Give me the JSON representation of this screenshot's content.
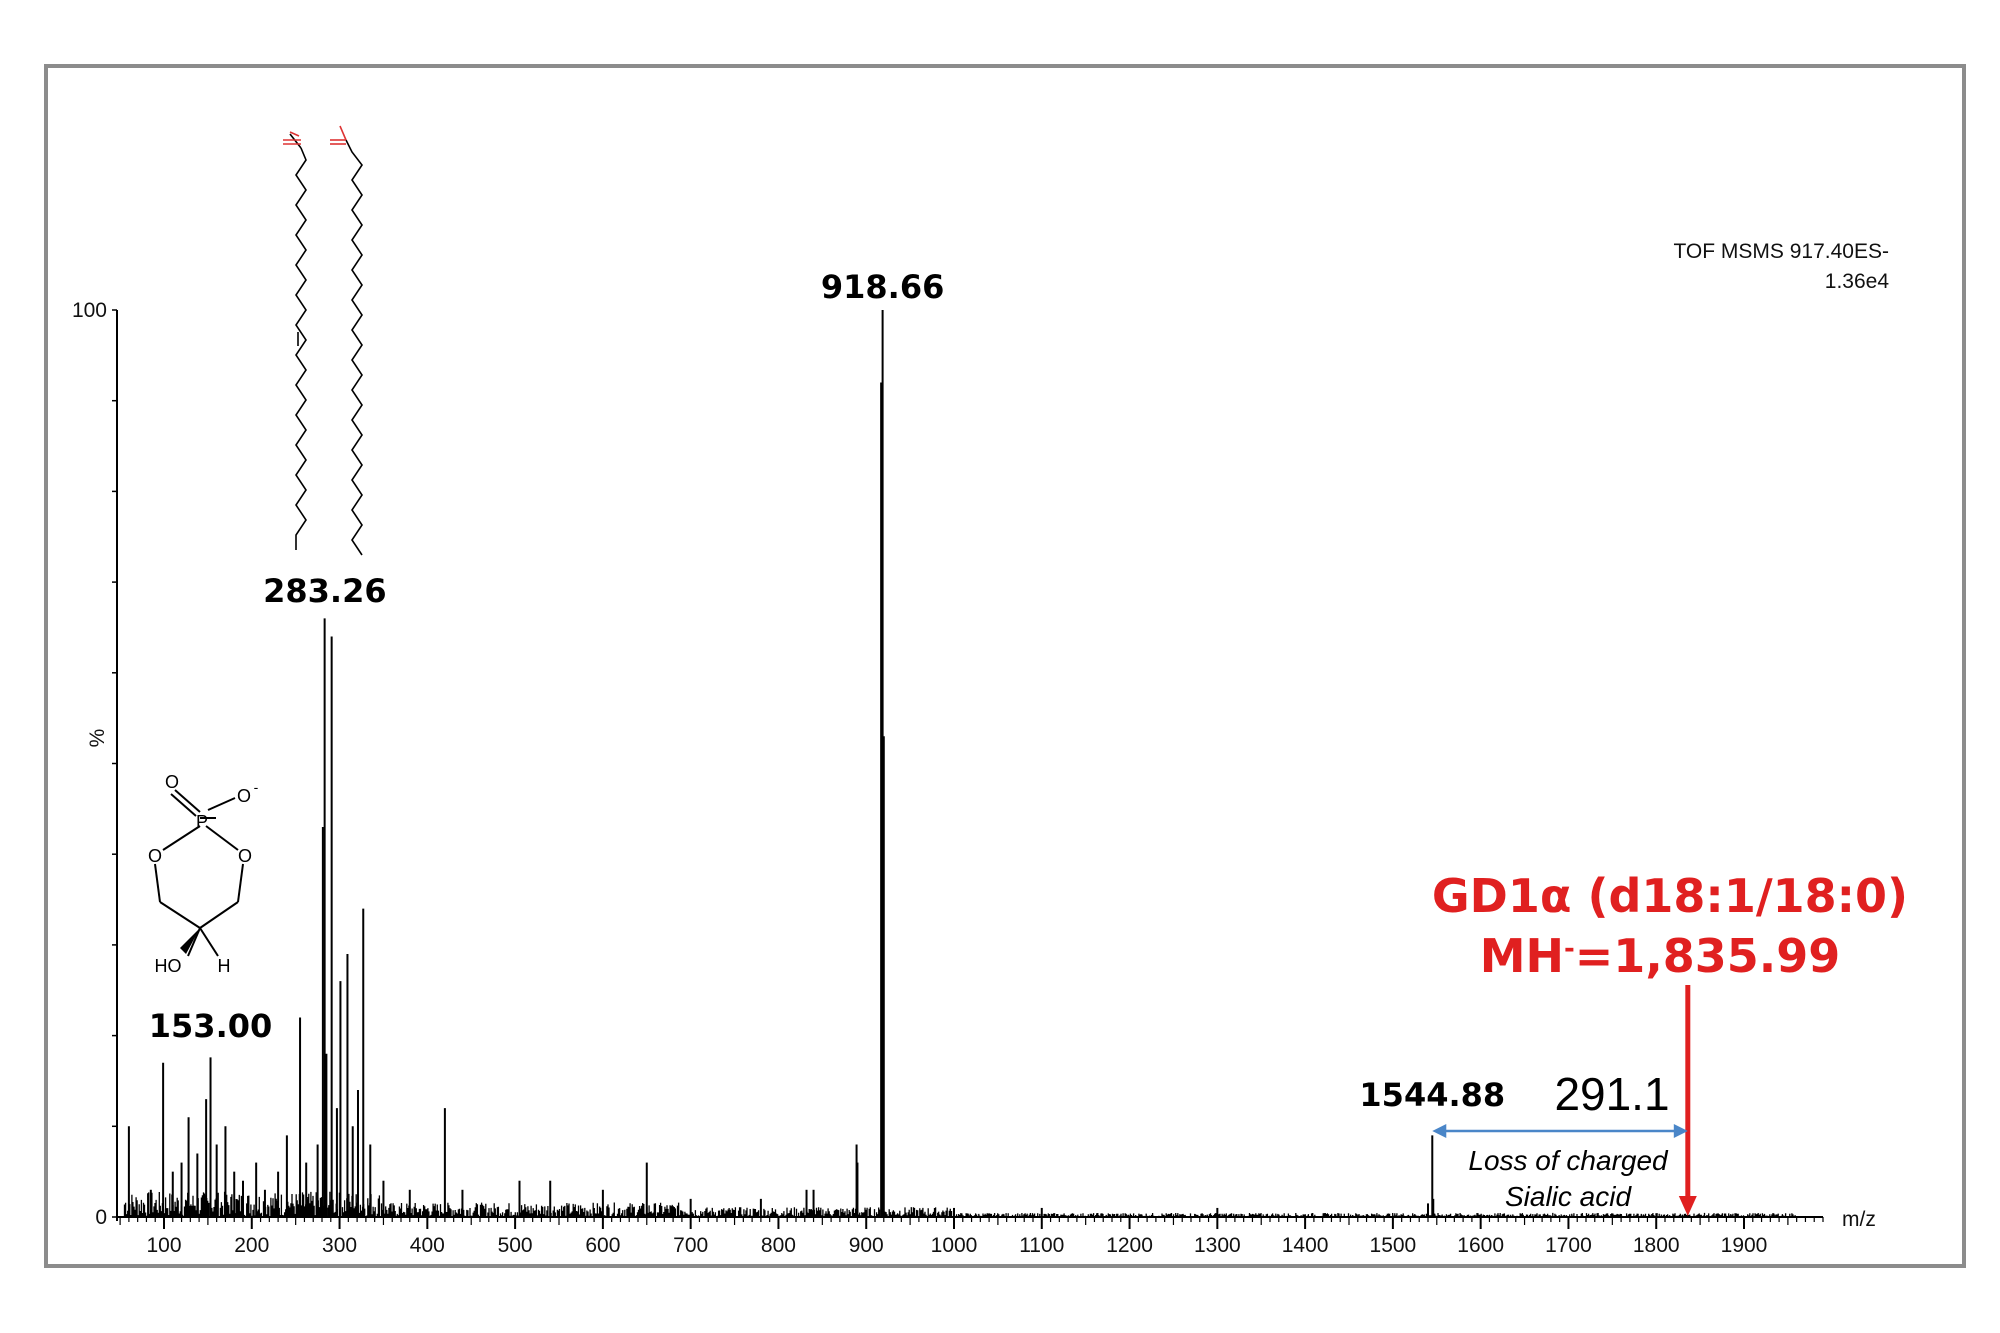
{
  "instrument": {
    "line1": "TOF MSMS 917.40ES-",
    "line2": "1.36e4"
  },
  "chart_data": {
    "type": "bar",
    "xlabel": "m/z",
    "ylabel": "%",
    "xlim": [
      50,
      1990
    ],
    "ylim": [
      0,
      100
    ],
    "xticks": [
      100,
      200,
      300,
      400,
      500,
      600,
      700,
      800,
      900,
      1000,
      1100,
      1200,
      1300,
      1400,
      1500,
      1600,
      1700,
      1800,
      1900
    ],
    "yticks": [
      0,
      100
    ],
    "peaks": [
      {
        "x": 60,
        "y": 10
      },
      {
        "x": 85,
        "y": 3
      },
      {
        "x": 99,
        "y": 17
      },
      {
        "x": 110,
        "y": 5
      },
      {
        "x": 120,
        "y": 6
      },
      {
        "x": 128,
        "y": 11
      },
      {
        "x": 138,
        "y": 7
      },
      {
        "x": 148,
        "y": 13
      },
      {
        "x": 153,
        "y": 17.6
      },
      {
        "x": 160,
        "y": 8
      },
      {
        "x": 170,
        "y": 10
      },
      {
        "x": 180,
        "y": 5
      },
      {
        "x": 190,
        "y": 4
      },
      {
        "x": 205,
        "y": 6
      },
      {
        "x": 215,
        "y": 3
      },
      {
        "x": 230,
        "y": 5
      },
      {
        "x": 240,
        "y": 9
      },
      {
        "x": 255,
        "y": 22
      },
      {
        "x": 262,
        "y": 6
      },
      {
        "x": 275,
        "y": 8
      },
      {
        "x": 281,
        "y": 43
      },
      {
        "x": 283,
        "y": 66
      },
      {
        "x": 285,
        "y": 18
      },
      {
        "x": 291,
        "y": 64
      },
      {
        "x": 297,
        "y": 12
      },
      {
        "x": 301,
        "y": 26
      },
      {
        "x": 309,
        "y": 29
      },
      {
        "x": 315,
        "y": 10
      },
      {
        "x": 321,
        "y": 14
      },
      {
        "x": 327,
        "y": 34
      },
      {
        "x": 335,
        "y": 8
      },
      {
        "x": 350,
        "y": 4
      },
      {
        "x": 380,
        "y": 3
      },
      {
        "x": 420,
        "y": 12
      },
      {
        "x": 440,
        "y": 3
      },
      {
        "x": 505,
        "y": 4
      },
      {
        "x": 540,
        "y": 4
      },
      {
        "x": 600,
        "y": 3
      },
      {
        "x": 650,
        "y": 6
      },
      {
        "x": 700,
        "y": 2
      },
      {
        "x": 780,
        "y": 2
      },
      {
        "x": 832,
        "y": 3
      },
      {
        "x": 840,
        "y": 3
      },
      {
        "x": 889,
        "y": 8
      },
      {
        "x": 890,
        "y": 6
      },
      {
        "x": 917,
        "y": 92
      },
      {
        "x": 918.66,
        "y": 100
      },
      {
        "x": 920,
        "y": 53
      },
      {
        "x": 1000,
        "y": 1
      },
      {
        "x": 1100,
        "y": 1
      },
      {
        "x": 1300,
        "y": 1
      },
      {
        "x": 1540,
        "y": 1.5
      },
      {
        "x": 1544.88,
        "y": 9
      },
      {
        "x": 1546,
        "y": 2
      }
    ],
    "peak_labels": [
      {
        "text": "918.66",
        "x": 918.66
      },
      {
        "text": "283.26",
        "x": 283.26
      },
      {
        "text": "153.00",
        "x": 153.0
      },
      {
        "text": "1544.88",
        "x": 1544.88
      }
    ],
    "annotations": {
      "compound_line1": "GD1α (d18:1/18:0)",
      "compound_line2_prefix": "MH",
      "compound_line2_sup": "-",
      "compound_line2_suffix": "=1,835.99",
      "precursor_mz": 1835.99,
      "delta_value": "291.1",
      "loss_line1": "Loss of charged",
      "loss_line2": "Sialic acid"
    },
    "colors": {
      "spectrum": "#000000",
      "arrow_red": "#e02020",
      "arrow_blue": "#4a86c8"
    }
  },
  "structure_labels": {
    "o_double": "O",
    "o_minus": "O",
    "p": "P",
    "o_left": "O",
    "o_right": "O",
    "ho": "HO",
    "h": "H",
    "minus": "-"
  }
}
